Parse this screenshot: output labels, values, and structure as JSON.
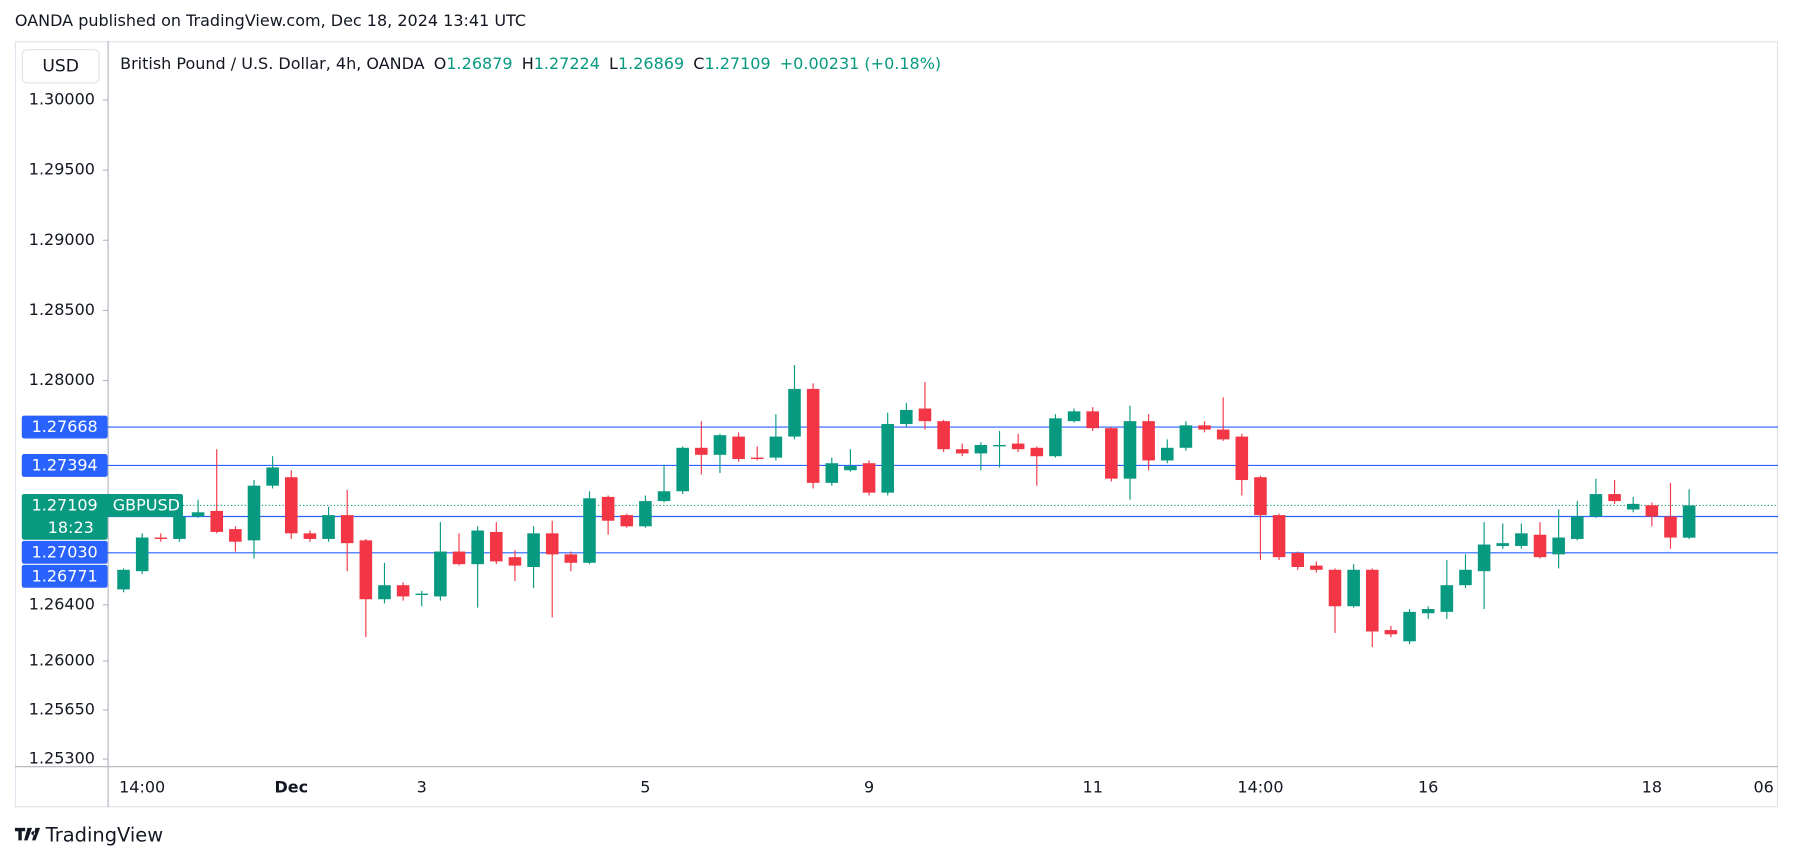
{
  "header": {
    "published": "OANDA published on TradingView.com, Dec 18, 2024 13:41 UTC",
    "brand": "TradingView"
  },
  "chart_data": {
    "type": "candlestick",
    "title": "British Pound / U.S. Dollar, 4h, OANDA",
    "currency": "USD",
    "symbol": "GBPUSD",
    "countdown": "18:23",
    "ohlc_labels": [
      "O",
      "H",
      "L",
      "C"
    ],
    "change": "+0.00231 (+0.18%)",
    "up_color": "#089981",
    "down_color": "#f23645",
    "line_color": "#2962ff",
    "grid": false,
    "categories": [
      null,
      "14:00",
      null,
      null,
      null,
      null,
      null,
      null,
      null,
      "Dec",
      null,
      null,
      null,
      null,
      null,
      null,
      "3",
      null,
      null,
      null,
      null,
      null,
      null,
      null,
      null,
      null,
      null,
      null,
      "5",
      null,
      null,
      null,
      null,
      null,
      null,
      null,
      null,
      null,
      null,
      null,
      "9",
      null,
      null,
      null,
      null,
      null,
      null,
      null,
      null,
      null,
      null,
      null,
      "11",
      null,
      null,
      null,
      null,
      null,
      null,
      null,
      null,
      "14:00",
      null,
      null,
      null,
      null,
      null,
      null,
      null,
      null,
      "16",
      null,
      null,
      null,
      null,
      null,
      null,
      null,
      null,
      null,
      null,
      null,
      "18",
      null,
      null,
      null,
      null,
      null,
      "06",
      null
    ],
    "open": [
      1.2651,
      1.2664,
      1.2688,
      1.2687,
      1.2703,
      1.2707,
      1.2694,
      1.2686,
      1.2725,
      1.2731,
      1.2691,
      1.2687,
      1.2704,
      1.2686,
      1.2644,
      1.2654,
      1.2647,
      1.2646,
      1.2678,
      1.2669,
      1.2692,
      1.2674,
      1.2667,
      1.2691,
      1.2676,
      1.267,
      1.2717,
      1.2704,
      1.2696,
      1.2714,
      1.2721,
      1.2752,
      1.2747,
      1.276,
      1.2745,
      1.2745,
      1.276,
      1.2794,
      1.2727,
      1.2736,
      1.2741,
      1.272,
      1.2769,
      1.278,
      1.2771,
      1.2751,
      1.2748,
      1.2753,
      1.2755,
      1.2752,
      1.2746,
      1.2771,
      1.2778,
      1.2766,
      1.273,
      1.2771,
      1.2743,
      1.2752,
      1.2768,
      1.2765,
      1.276,
      1.2731,
      1.2704,
      1.2677,
      1.2668,
      1.2665,
      1.2639,
      1.2665,
      1.2622,
      1.2614,
      1.2634,
      1.2635,
      1.2654,
      1.2664,
      1.2682,
      1.2682,
      1.269,
      1.2676,
      1.2687,
      1.2703,
      1.2719,
      1.2708,
      1.2711,
      1.2703,
      1.26879,
      null,
      null,
      null,
      null,
      null
    ],
    "high": [
      1.2666,
      1.2691,
      1.2691,
      1.2708,
      1.2715,
      1.2751,
      1.2696,
      1.2729,
      1.2746,
      1.2736,
      1.2693,
      1.271,
      1.2722,
      1.2687,
      1.267,
      1.2656,
      1.265,
      1.2699,
      1.2691,
      1.2696,
      1.2699,
      1.2679,
      1.2696,
      1.27,
      1.2678,
      1.2721,
      1.2718,
      1.2705,
      1.2718,
      1.274,
      1.2753,
      1.2771,
      1.2762,
      1.2763,
      1.2753,
      1.2776,
      1.2811,
      1.2798,
      1.2745,
      1.2751,
      1.2743,
      1.2777,
      1.2784,
      1.2799,
      1.2772,
      1.2755,
      1.2756,
      1.2764,
      1.2762,
      1.2753,
      1.2776,
      1.278,
      1.2781,
      1.2767,
      1.2782,
      1.2776,
      1.2758,
      1.2771,
      1.2771,
      1.2788,
      1.2762,
      1.2732,
      1.2705,
      1.2678,
      1.2671,
      1.2666,
      1.2669,
      1.2666,
      1.2625,
      1.2637,
      1.2639,
      1.2672,
      1.2676,
      1.2699,
      1.2698,
      1.2698,
      1.2699,
      1.2708,
      1.2714,
      1.273,
      1.2729,
      1.2717,
      1.2713,
      1.2727,
      1.27224,
      null,
      null,
      null,
      null,
      null
    ],
    "low": [
      1.2649,
      1.2662,
      1.2685,
      1.2685,
      1.2702,
      1.2691,
      1.2678,
      1.2673,
      1.2723,
      1.2687,
      1.2685,
      1.2685,
      1.2664,
      1.2617,
      1.2641,
      1.2643,
      1.2639,
      1.2643,
      1.2668,
      1.2638,
      1.2669,
      1.2657,
      1.2652,
      1.2631,
      1.2664,
      1.2669,
      1.269,
      1.2695,
      1.2695,
      1.2713,
      1.2719,
      1.2733,
      1.2734,
      1.2742,
      1.2743,
      1.2743,
      1.2758,
      1.2723,
      1.2725,
      1.2735,
      1.2718,
      1.2718,
      1.2767,
      1.2765,
      1.2749,
      1.2746,
      1.2736,
      1.2738,
      1.2749,
      1.2725,
      1.2745,
      1.277,
      1.2764,
      1.2728,
      1.2715,
      1.2736,
      1.2741,
      1.275,
      1.2763,
      1.2757,
      1.2718,
      1.2672,
      1.2672,
      1.2665,
      1.2663,
      1.262,
      1.2638,
      1.261,
      1.2617,
      1.2612,
      1.263,
      1.263,
      1.2652,
      1.2637,
      1.268,
      1.268,
      1.2673,
      1.2666,
      1.2686,
      1.2702,
      1.2712,
      1.2706,
      1.2696,
      1.268,
      1.26869,
      null,
      null,
      null,
      null,
      null
    ],
    "close": [
      1.2665,
      1.2688,
      1.2687,
      1.2703,
      1.2706,
      1.2692,
      1.2685,
      1.2725,
      1.2738,
      1.2691,
      1.2687,
      1.2704,
      1.2684,
      1.2644,
      1.2654,
      1.2646,
      1.2648,
      1.2678,
      1.2669,
      1.2693,
      1.2671,
      1.2668,
      1.2691,
      1.2676,
      1.267,
      1.2716,
      1.27,
      1.2696,
      1.2714,
      1.2721,
      1.2752,
      1.2747,
      1.2761,
      1.2744,
      1.2744,
      1.276,
      1.2794,
      1.2727,
      1.2741,
      1.2739,
      1.272,
      1.2769,
      1.2779,
      1.2771,
      1.2751,
      1.2748,
      1.2754,
      1.2754,
      1.2751,
      1.2746,
      1.2773,
      1.2778,
      1.2766,
      1.273,
      1.2771,
      1.2743,
      1.2752,
      1.2768,
      1.2765,
      1.2758,
      1.2729,
      1.2704,
      1.2674,
      1.2667,
      1.2665,
      1.2639,
      1.2665,
      1.2621,
      1.2619,
      1.2635,
      1.2637,
      1.2654,
      1.2665,
      1.2683,
      1.2684,
      1.2691,
      1.2674,
      1.2688,
      1.2703,
      1.2719,
      1.2714,
      1.2712,
      1.2703,
      1.2688,
      1.27109,
      null,
      null,
      null,
      null,
      null
    ],
    "ylim": [
      1.2525,
      1.3042
    ],
    "yticks": [
      {
        "value": 1.3,
        "label": "1.30000"
      },
      {
        "value": 1.295,
        "label": "1.29500"
      },
      {
        "value": 1.29,
        "label": "1.29000"
      },
      {
        "value": 1.285,
        "label": "1.28500"
      },
      {
        "value": 1.28,
        "label": "1.28000"
      },
      {
        "value": 1.264,
        "label": "1.26400"
      },
      {
        "value": 1.26,
        "label": "1.26000"
      },
      {
        "value": 1.2565,
        "label": "1.25650"
      },
      {
        "value": 1.253,
        "label": "1.25300"
      }
    ],
    "price_lines": [
      {
        "value": 1.27668,
        "label": "1.27668"
      },
      {
        "value": 1.27394,
        "label": "1.27394"
      },
      {
        "value": 1.2703,
        "label": "1.27030"
      },
      {
        "value": 1.26771,
        "label": "1.26771"
      }
    ]
  }
}
